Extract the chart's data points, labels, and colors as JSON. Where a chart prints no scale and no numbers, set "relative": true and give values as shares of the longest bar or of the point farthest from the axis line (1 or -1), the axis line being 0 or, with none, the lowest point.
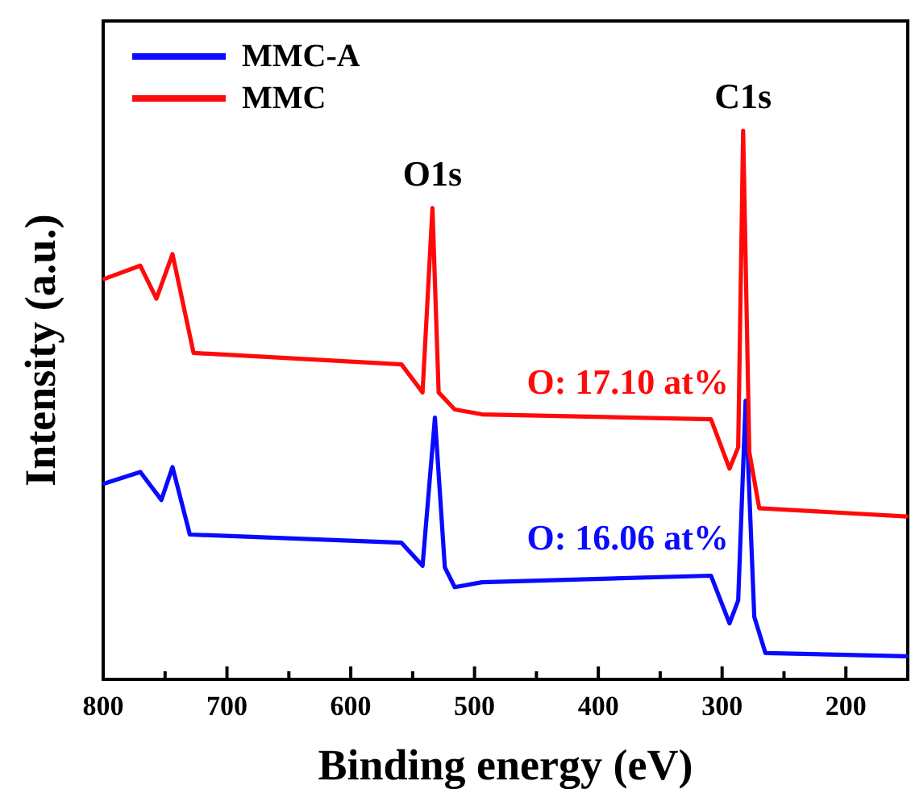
{
  "chart_data": {
    "type": "line",
    "xlabel": "Binding energy (eV)",
    "ylabel": "Intensity (a.u.)",
    "relative": true,
    "xlim": [
      800,
      150
    ],
    "xticks": [
      800,
      {
        "value": 750,
        "label": null
      },
      700,
      {
        "value": 650,
        "label": null
      },
      600,
      {
        "value": 550,
        "label": null
      },
      500,
      {
        "value": 450,
        "label": null
      },
      400,
      {
        "value": 350,
        "label": null
      },
      300,
      {
        "value": 250,
        "label": null
      },
      200
    ],
    "legend": "top left",
    "line_style": "solid",
    "series": [
      {
        "name": "MMC-A",
        "color": "#0a0aff",
        "x": [
          799,
          770,
          753,
          744,
          730,
          559,
          542,
          532,
          524,
          516,
          494,
          309,
          294,
          287,
          281,
          274,
          265,
          151
        ],
        "values": [
          0.357,
          0.378,
          0.327,
          0.387,
          0.264,
          0.249,
          0.207,
          0.477,
          0.204,
          0.168,
          0.177,
          0.189,
          0.102,
          0.144,
          0.508,
          0.114,
          0.048,
          0.042
        ]
      },
      {
        "name": "MMC",
        "color": "#ff0a0a",
        "x": [
          799,
          770,
          757,
          744,
          727,
          559,
          542,
          534,
          529,
          516,
          494,
          309,
          294,
          287,
          283,
          278,
          270,
          151
        ],
        "values": [
          0.73,
          0.754,
          0.694,
          0.775,
          0.595,
          0.574,
          0.523,
          0.859,
          0.523,
          0.492,
          0.483,
          0.474,
          0.384,
          0.423,
          1.0,
          0.414,
          0.312,
          0.297
        ]
      }
    ],
    "annotations": [
      {
        "text": "O1s",
        "x": 534,
        "y": 0.859
      },
      {
        "text": "C1s",
        "x": 283,
        "y": 1.0
      },
      "O: 17.10 at%",
      "O: 16.06 at%"
    ]
  }
}
